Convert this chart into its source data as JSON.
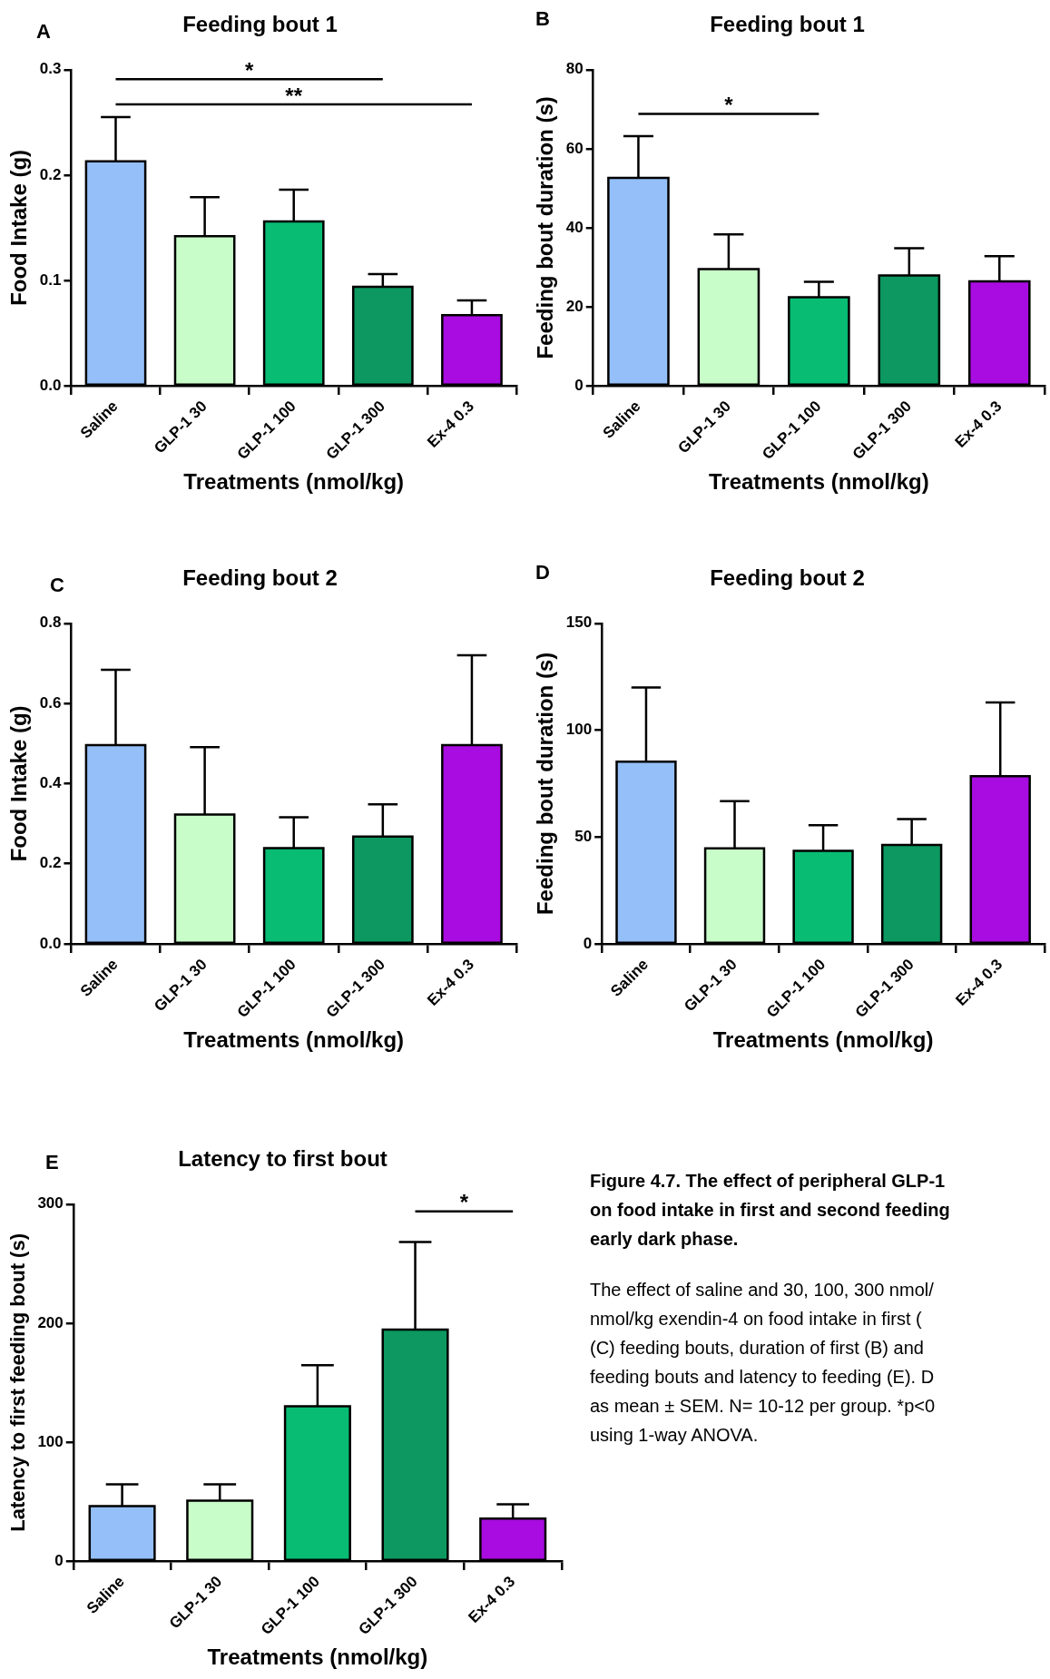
{
  "chart_data": [
    {
      "type": "bar",
      "title": "Feeding bout 1",
      "xlabel": "Treatments (nmol/kg)",
      "ylabel": "Food Intake (g)",
      "categories": [
        "Saline",
        "GLP-1 30",
        "GLP-1 100",
        "GLP-1 300",
        "Ex-4 0.3"
      ],
      "values": [
        0.213,
        0.142,
        0.156,
        0.094,
        0.067
      ],
      "errors": [
        [
          0.213,
          0.255
        ],
        [
          0.142,
          0.179
        ],
        [
          0.156,
          0.186
        ],
        [
          0.094,
          0.106
        ],
        [
          0.067,
          0.081
        ]
      ],
      "colors": [
        "#94bff8",
        "#c8fcc8",
        "#08bc74",
        "#0c9860",
        "#a80ce0"
      ],
      "ylim": [
        0,
        0.3
      ],
      "yticks": [
        {
          "value": 0,
          "label": "0.0"
        },
        {
          "value": 0.1,
          "label": "0.1"
        },
        {
          "value": 0.2,
          "label": "0.2"
        },
        {
          "value": 0.3,
          "label": "0.3"
        }
      ],
      "annotations": [
        "A",
        "*",
        "**"
      ]
    },
    {
      "type": "bar",
      "title": "Feeding bout 1",
      "xlabel": "Treatments (nmol/kg)",
      "ylabel": "Feeding bout duration (s)",
      "categories": [
        "Saline",
        "GLP-1 30",
        "GLP-1 100",
        "GLP-1 300",
        "Ex-4 0.3"
      ],
      "values": [
        52.6,
        29.5,
        22.4,
        27.9,
        26.4
      ],
      "errors": [
        [
          52.6,
          63.2
        ],
        [
          29.5,
          38.3
        ],
        [
          22.4,
          26.3
        ],
        [
          27.9,
          34.8
        ],
        [
          26.4,
          32.8
        ]
      ],
      "colors": [
        "#94bff8",
        "#c8fcc8",
        "#08bc74",
        "#0c9860",
        "#a80ce0"
      ],
      "ylim": [
        0,
        80
      ],
      "yticks": [
        0,
        20,
        40,
        60,
        80
      ],
      "annotations": [
        "B",
        "*"
      ]
    },
    {
      "type": "bar",
      "title": "Feeding bout 2",
      "xlabel": "Treatments (nmol/kg)",
      "ylabel": "Food Intake (g)",
      "categories": [
        "Saline",
        "GLP-1 30",
        "GLP-1 100",
        "GLP-1 300",
        "Ex-4 0.3"
      ],
      "values": [
        0.496,
        0.323,
        0.239,
        0.268,
        0.496
      ],
      "errors": [
        [
          0.496,
          0.684
        ],
        [
          0.323,
          0.491
        ],
        [
          0.239,
          0.316
        ],
        [
          0.268,
          0.348
        ],
        [
          0.496,
          0.72
        ]
      ],
      "colors": [
        "#94bff8",
        "#c8fcc8",
        "#08bc74",
        "#0c9860",
        "#a80ce0"
      ],
      "ylim": [
        0,
        0.8
      ],
      "yticks": [
        {
          "value": 0,
          "label": "0.0"
        },
        {
          "value": 0.2,
          "label": "0.2"
        },
        {
          "value": 0.4,
          "label": "0.4"
        },
        {
          "value": 0.6,
          "label": "0.6"
        },
        {
          "value": 0.8,
          "label": "0.8"
        }
      ],
      "annotations": [
        "C"
      ]
    },
    {
      "type": "bar",
      "title": "Feeding bout 2",
      "xlabel": "Treatments (nmol/kg)",
      "ylabel": "Feeding bout duration (s)",
      "categories": [
        "Saline",
        "GLP-1 30",
        "GLP-1 100",
        "GLP-1 300",
        "Ex-4 0.3"
      ],
      "values": [
        85.3,
        44.7,
        43.5,
        46.3,
        78.5
      ],
      "errors": [
        [
          85.3,
          120
        ],
        [
          44.7,
          66.8
        ],
        [
          43.5,
          55.5
        ],
        [
          46.3,
          58.4
        ],
        [
          78.5,
          113
        ]
      ],
      "colors": [
        "#94bff8",
        "#c8fcc8",
        "#08bc74",
        "#0c9860",
        "#a80ce0"
      ],
      "ylim": [
        0,
        150
      ],
      "yticks": [
        0,
        50,
        100,
        150
      ],
      "annotations": [
        "D"
      ]
    },
    {
      "type": "bar",
      "title": "Latency to first bout",
      "xlabel": "Treatments (nmol/kg)",
      "ylabel": "Latency to first feeding bout (s)",
      "categories": [
        "Saline",
        "GLP-1 30",
        "GLP-1 100",
        "GLP-1 300",
        "Ex-4 0.3"
      ],
      "values": [
        46.2,
        50.8,
        130,
        194.6,
        35.6
      ],
      "errors": [
        [
          46.2,
          64.5
        ],
        [
          50.8,
          64.5
        ],
        [
          130,
          164.6
        ],
        [
          194.6,
          268.2
        ],
        [
          35.6,
          47.6
        ]
      ],
      "colors": [
        "#94bff8",
        "#c8fcc8",
        "#08bc74",
        "#0c9860",
        "#a80ce0"
      ],
      "ylim": [
        0,
        300
      ],
      "yticks": [
        0,
        100,
        200,
        300
      ],
      "annotations": [
        "E",
        "*"
      ]
    },
    {
      "type": "other",
      "title": "Figure 4.7. The effect of peripheral GLP-1\non food intake in first and second feeding\nearly dark phase.",
      "annotations": [
        "The effect of saline and 30, 100, 300 nmol/",
        "nmol/kg exendin-4 on food intake in first (",
        "(C) feeding bouts, duration of first (B) and",
        "feeding bouts and latency to feeding (E). D",
        "as mean ± SEM. N= 10-12 per group. *p<0",
        "using 1-way ANOVA."
      ]
    }
  ]
}
